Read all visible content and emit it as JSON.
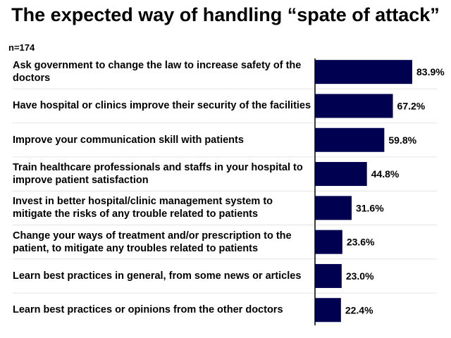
{
  "chart_data": {
    "type": "bar",
    "orientation": "horizontal",
    "title": "The expected way of handling “spate of attack”",
    "sample_size": "n=174",
    "categories": [
      "Ask government to change the law to increase safety of the doctors",
      "Have hospital or clinics improve their security of the facilities",
      "Improve your communication skill with patients",
      "Train healthcare professionals and staffs in your hospital to improve patient satisfaction",
      "Invest in better hospital/clinic management system to mitigate the risks of any trouble related to patients",
      "Change your ways of treatment and/or prescription to the patient, to mitigate any troubles related to patients",
      "Learn best practices in general, from some news or articles",
      "Learn best practices or opinions from the other doctors"
    ],
    "values": [
      83.9,
      67.2,
      59.8,
      44.8,
      31.6,
      23.6,
      23.0,
      22.4
    ],
    "value_labels": [
      "83.9%",
      "67.2%",
      "59.8%",
      "44.8%",
      "31.6%",
      "23.6%",
      "23.0%",
      "22.4%"
    ],
    "unit": "%",
    "xlim": [
      0,
      100
    ],
    "bar_color": "#000050",
    "grid": false
  }
}
